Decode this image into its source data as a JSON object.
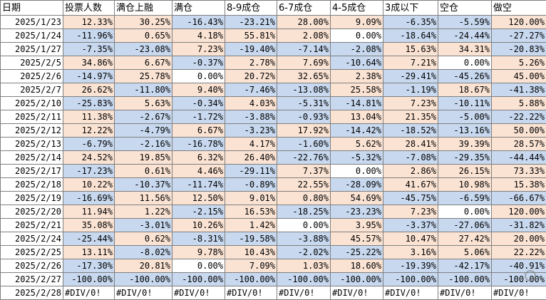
{
  "headers": [
    "日期",
    "投票人数",
    "满仓上融",
    "满仓",
    "8-9成仓",
    "6-7成仓",
    "4-5成仓",
    "3成以下",
    "空仓",
    "做空"
  ],
  "rows": [
    [
      "2025/1/23",
      "12.33%",
      "30.25%",
      "-16.43%",
      "-23.21%",
      "28.00%",
      "9.09%",
      "-6.35%",
      "-5.59%",
      "120.00%"
    ],
    [
      "2025/1/24",
      "-11.96%",
      "0.65%",
      "4.18%",
      "55.81%",
      "2.08%",
      "0.00%",
      "-18.64%",
      "-24.44%",
      "-27.27%"
    ],
    [
      "2025/1/27",
      "-7.35%",
      "-23.08%",
      "7.23%",
      "-19.40%",
      "-7.14%",
      "-2.08%",
      "15.63%",
      "34.31%",
      "-20.83%"
    ],
    [
      "2025/2/5",
      "34.86%",
      "6.67%",
      "-0.37%",
      "2.78%",
      "7.69%",
      "-10.64%",
      "7.21%",
      "0.00%",
      "5.26%"
    ],
    [
      "2025/2/6",
      "-14.97%",
      "25.78%",
      "0.00%",
      "20.72%",
      "32.65%",
      "2.38%",
      "-29.41%",
      "-45.26%",
      "45.00%"
    ],
    [
      "2025/2/7",
      "26.62%",
      "-11.80%",
      "9.40%",
      "-7.46%",
      "-13.08%",
      "25.58%",
      "-1.19%",
      "18.67%",
      "-41.38%"
    ],
    [
      "2025/2/10",
      "-25.83%",
      "5.63%",
      "-0.34%",
      "4.03%",
      "-5.31%",
      "-14.81%",
      "7.23%",
      "-10.11%",
      "5.88%"
    ],
    [
      "2025/2/11",
      "11.38%",
      "-2.67%",
      "-1.72%",
      "-3.88%",
      "-0.93%",
      "13.04%",
      "21.35%",
      "-5.00%",
      "-22.22%"
    ],
    [
      "2025/2/12",
      "12.22%",
      "-4.79%",
      "6.67%",
      "-3.23%",
      "17.92%",
      "-14.42%",
      "-18.52%",
      "-13.16%",
      "50.00%"
    ],
    [
      "2025/2/13",
      "-6.79%",
      "-2.16%",
      "-16.78%",
      "4.17%",
      "-1.60%",
      "5.62%",
      "28.41%",
      "39.39%",
      "28.57%"
    ],
    [
      "2025/2/14",
      "24.52%",
      "19.85%",
      "6.32%",
      "26.40%",
      "-22.76%",
      "-5.32%",
      "-7.08%",
      "-29.35%",
      "-44.44%"
    ],
    [
      "2025/2/17",
      "-17.23%",
      "0.61%",
      "4.46%",
      "-29.11%",
      "7.37%",
      "0.00%",
      "2.86%",
      "26.15%",
      "73.33%"
    ],
    [
      "2025/2/18",
      "10.22%",
      "-10.37%",
      "-11.74%",
      "-0.89%",
      "22.55%",
      "-28.09%",
      "41.67%",
      "10.98%",
      "15.38%"
    ],
    [
      "2025/2/19",
      "-16.69%",
      "11.56%",
      "12.50%",
      "9.01%",
      "0.80%",
      "54.69%",
      "-45.75%",
      "-6.59%",
      "-66.67%"
    ],
    [
      "2025/2/20",
      "11.94%",
      "1.22%",
      "-2.15%",
      "16.53%",
      "-18.25%",
      "-23.23%",
      "7.23%",
      "0.00%",
      "120.00%"
    ],
    [
      "2025/2/21",
      "35.08%",
      "-3.01%",
      "10.26%",
      "1.42%",
      "0.00%",
      "3.95%",
      "-3.37%",
      "-27.06%",
      "-31.82%"
    ],
    [
      "2025/2/24",
      "-25.44%",
      "0.62%",
      "-8.31%",
      "-19.58%",
      "-3.88%",
      "45.57%",
      "10.47%",
      "27.42%",
      "20.00%"
    ],
    [
      "2025/2/25",
      "13.11%",
      "-8.02%",
      "9.78%",
      "10.43%",
      "-2.02%",
      "-25.22%",
      "3.16%",
      "5.06%",
      "22.22%"
    ],
    [
      "2025/2/26",
      "-17.30%",
      "20.81%",
      "0.00%",
      "7.09%",
      "1.03%",
      "18.60%",
      "-19.39%",
      "-42.17%",
      "-40.91%"
    ],
    [
      "2025/2/27",
      "-100.00%",
      "-100.00%",
      "-100.00%",
      "-100.00%",
      "-100.00%",
      "-100.00%",
      "-100.00%",
      "-100.00%",
      "-100.00%"
    ],
    [
      "2025/2/28",
      "#DIV/0!",
      "#DIV/0!",
      "#DIV/0!",
      "#DIV/0!",
      "#DIV/0!",
      "#DIV/0!",
      "#DIV/0!",
      "#DIV/0!",
      "#DIV/0!"
    ]
  ],
  "colors": {
    "positive_fill": "#fbe3d3",
    "negative_fill": "#c7d8ef",
    "grid": "#7f7f7f"
  }
}
